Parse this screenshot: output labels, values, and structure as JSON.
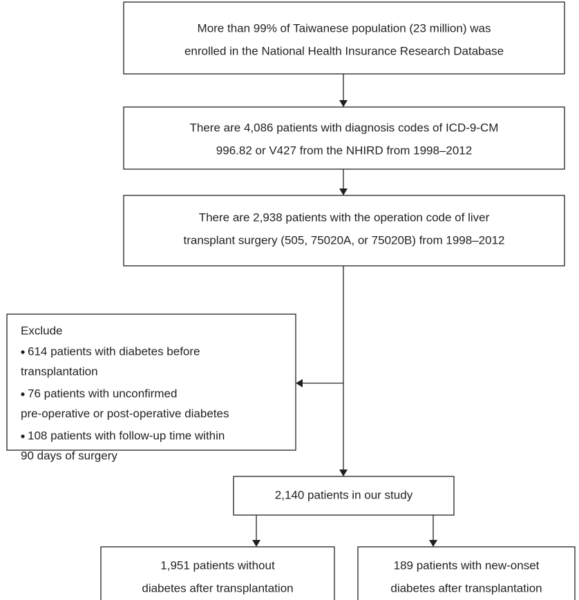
{
  "nodes": [
    {
      "lines": [
        "More than 99% of Taiwanese population (23 million) was",
        "enrolled in the National Health Insurance Research Database"
      ]
    },
    {
      "lines": [
        "There are 4,086 patients with diagnosis codes of ICD-9-CM",
        "996.82 or V427 from the NHIRD from 1998–2012"
      ]
    },
    {
      "lines": [
        "There are 2,938 patients with the operation code of liver",
        "transplant surgery (505, 75020A, or 75020B) from 1998–2012"
      ]
    },
    {
      "lines": [
        "2,140 patients in our study"
      ]
    },
    {
      "lines": [
        "1,951 patients without",
        "diabetes after transplantation"
      ]
    },
    {
      "lines": [
        "189 patients with new-onset",
        "diabetes after transplantation"
      ]
    }
  ],
  "exclude": {
    "title": "Exclude",
    "bullets": [
      [
        "614 patients with diabetes before",
        "transplantation"
      ],
      [
        "76 patients with unconfirmed",
        "pre-operative or post-operative diabetes"
      ],
      [
        "108 patients with follow-up time within",
        "90 days of surgery"
      ]
    ]
  }
}
